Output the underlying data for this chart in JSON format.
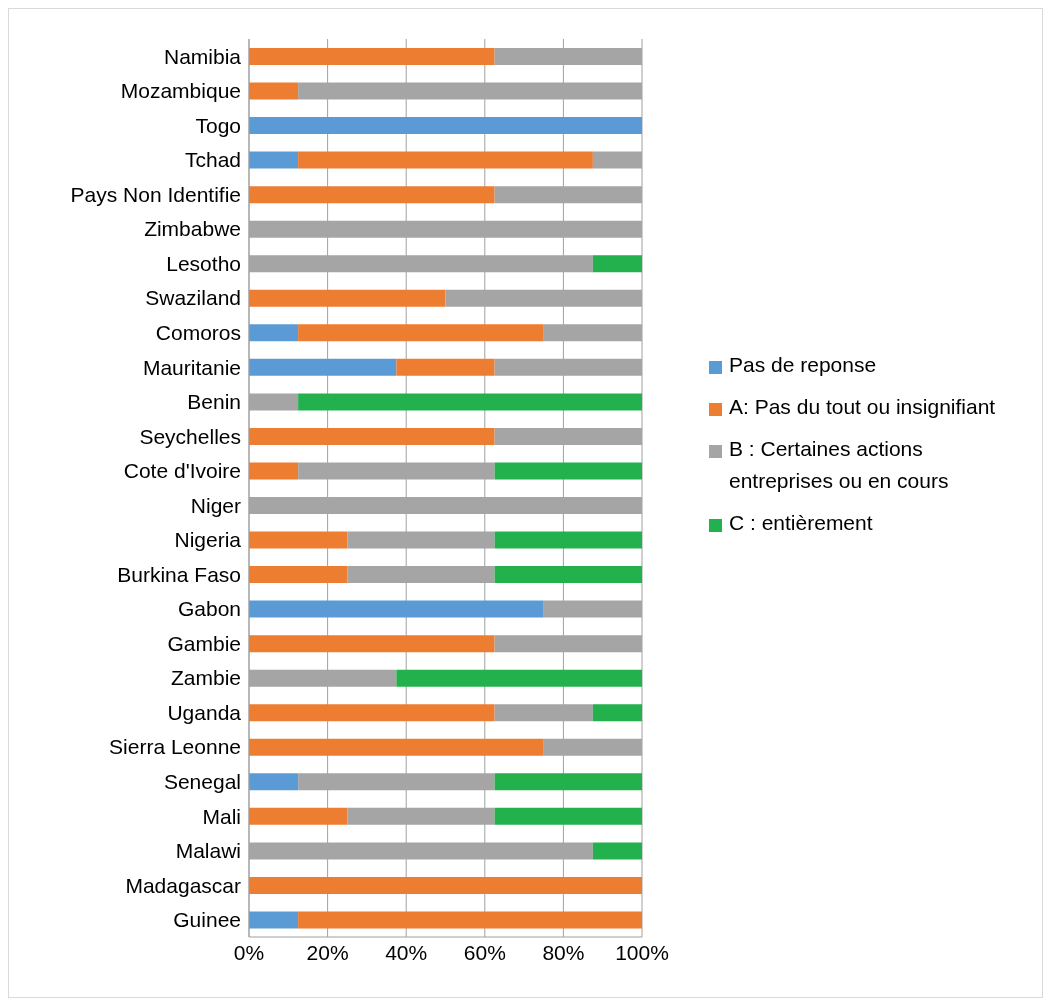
{
  "chart_data": {
    "type": "bar",
    "orientation": "horizontal",
    "stacked": true,
    "categories": [
      "Namibia",
      "Mozambique",
      "Togo",
      "Tchad",
      "Pays Non Identifie",
      "Zimbabwe",
      "Lesotho",
      "Swaziland",
      "Comoros",
      "Mauritanie",
      "Benin",
      "Seychelles",
      "Cote d'Ivoire",
      "Niger",
      "Nigeria",
      "Burkina Faso",
      "Gabon",
      "Gambie",
      "Zambie",
      "Uganda",
      "Sierra Leonne",
      "Senegal",
      "Mali",
      "Malawi",
      "Madagascar",
      "Guinee"
    ],
    "series": [
      {
        "name": "Pas de reponse",
        "color": "#5b9bd5",
        "values": [
          0,
          0,
          100,
          12.5,
          0,
          0,
          0,
          0,
          12.5,
          37.5,
          0,
          0,
          0,
          0,
          0,
          0,
          75,
          0,
          0,
          0,
          0,
          12.5,
          0,
          0,
          0,
          12.5
        ]
      },
      {
        "name": "A: Pas du tout ou insignifiant",
        "color": "#ed7d31",
        "values": [
          62.5,
          12.5,
          0,
          75,
          62.5,
          0,
          0,
          50,
          62.5,
          25,
          0,
          62.5,
          12.5,
          0,
          25,
          25,
          0,
          62.5,
          0,
          62.5,
          75,
          0,
          25,
          0,
          100,
          87.5
        ]
      },
      {
        "name": "B : Certaines actions entreprises ou en cours",
        "color": "#a5a5a5",
        "values": [
          37.5,
          87.5,
          0,
          12.5,
          37.5,
          100,
          87.5,
          50,
          25,
          37.5,
          12.5,
          37.5,
          50,
          100,
          37.5,
          37.5,
          25,
          37.5,
          37.5,
          25,
          25,
          50,
          37.5,
          87.5,
          0,
          0
        ]
      },
      {
        "name": "C : entièrement",
        "color": "#22b14c",
        "values": [
          0,
          0,
          0,
          0,
          0,
          0,
          12.5,
          0,
          0,
          0,
          87.5,
          0,
          37.5,
          0,
          37.5,
          37.5,
          0,
          0,
          62.5,
          12.5,
          0,
          37.5,
          37.5,
          12.5,
          0,
          0
        ]
      }
    ],
    "xlim": [
      0,
      100
    ],
    "xticks": [
      {
        "value": 0,
        "label": "0%"
      },
      {
        "value": 20,
        "label": "20%"
      },
      {
        "value": 40,
        "label": "40%"
      },
      {
        "value": 60,
        "label": "60%"
      },
      {
        "value": 80,
        "label": "80%"
      },
      {
        "value": 100,
        "label": "100%"
      }
    ],
    "grid": "x",
    "legend": "right"
  }
}
